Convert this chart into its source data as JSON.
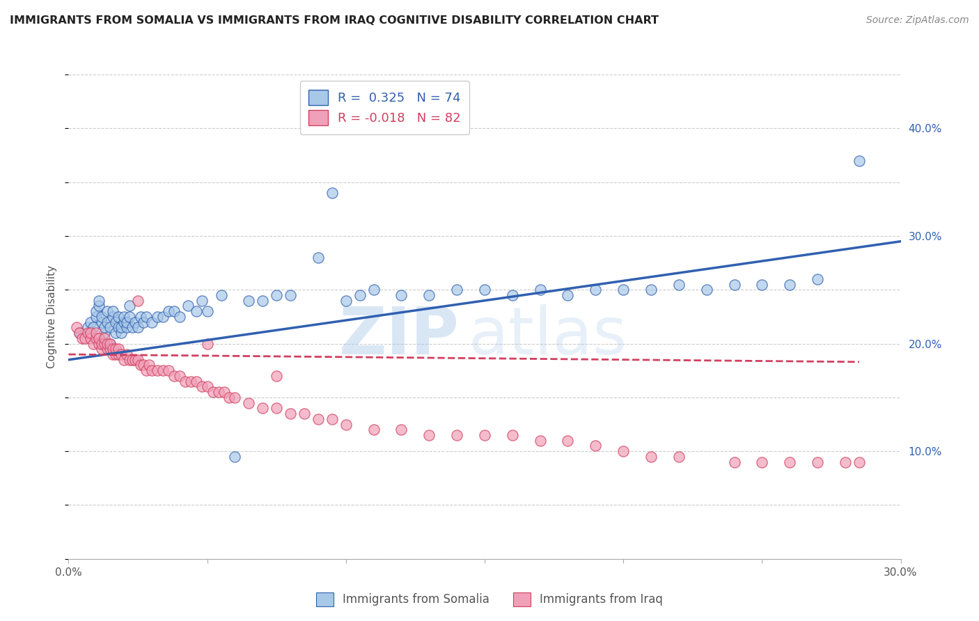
{
  "title": "IMMIGRANTS FROM SOMALIA VS IMMIGRANTS FROM IRAQ COGNITIVE DISABILITY CORRELATION CHART",
  "source": "Source: ZipAtlas.com",
  "xlabel_label": "Immigrants from Somalia",
  "ylabel_label": "Cognitive Disability",
  "xlabel2_label": "Immigrants from Iraq",
  "xlim": [
    0.0,
    0.3
  ],
  "ylim": [
    0.0,
    0.45
  ],
  "xticks": [
    0.0,
    0.05,
    0.1,
    0.15,
    0.2,
    0.25,
    0.3
  ],
  "yticks_right": [
    0.1,
    0.2,
    0.3,
    0.4
  ],
  "ytick_labels_right": [
    "10.0%",
    "20.0%",
    "30.0%",
    "40.0%"
  ],
  "xtick_labels": [
    "0.0%",
    "",
    "",
    "",
    "",
    "",
    "30.0%"
  ],
  "somalia_color": "#a8c8e8",
  "iraq_color": "#f0a0b8",
  "somalia_line_color": "#3060b0",
  "iraq_line_color": "#d04060",
  "R_somalia": 0.325,
  "N_somalia": 74,
  "R_iraq": -0.018,
  "N_iraq": 82,
  "watermark_zip": "ZIP",
  "watermark_atlas": "atlas",
  "background_color": "#ffffff",
  "grid_color": "#cccccc",
  "somalia_scatter_x": [
    0.004,
    0.007,
    0.008,
    0.009,
    0.01,
    0.01,
    0.011,
    0.011,
    0.012,
    0.012,
    0.013,
    0.013,
    0.014,
    0.014,
    0.015,
    0.015,
    0.016,
    0.016,
    0.017,
    0.017,
    0.018,
    0.018,
    0.019,
    0.019,
    0.02,
    0.02,
    0.021,
    0.021,
    0.022,
    0.022,
    0.023,
    0.024,
    0.025,
    0.026,
    0.027,
    0.028,
    0.03,
    0.032,
    0.034,
    0.036,
    0.038,
    0.04,
    0.043,
    0.046,
    0.048,
    0.05,
    0.055,
    0.06,
    0.065,
    0.07,
    0.075,
    0.08,
    0.09,
    0.095,
    0.1,
    0.105,
    0.11,
    0.12,
    0.13,
    0.14,
    0.15,
    0.16,
    0.17,
    0.18,
    0.19,
    0.2,
    0.21,
    0.22,
    0.23,
    0.24,
    0.25,
    0.26,
    0.27,
    0.285
  ],
  "somalia_scatter_y": [
    0.21,
    0.215,
    0.22,
    0.215,
    0.225,
    0.23,
    0.235,
    0.24,
    0.22,
    0.225,
    0.21,
    0.215,
    0.22,
    0.23,
    0.2,
    0.215,
    0.225,
    0.23,
    0.21,
    0.22,
    0.215,
    0.225,
    0.21,
    0.215,
    0.22,
    0.225,
    0.215,
    0.22,
    0.225,
    0.235,
    0.215,
    0.22,
    0.215,
    0.225,
    0.22,
    0.225,
    0.22,
    0.225,
    0.225,
    0.23,
    0.23,
    0.225,
    0.235,
    0.23,
    0.24,
    0.23,
    0.245,
    0.095,
    0.24,
    0.24,
    0.245,
    0.245,
    0.28,
    0.34,
    0.24,
    0.245,
    0.25,
    0.245,
    0.245,
    0.25,
    0.25,
    0.245,
    0.25,
    0.245,
    0.25,
    0.25,
    0.25,
    0.255,
    0.25,
    0.255,
    0.255,
    0.255,
    0.26,
    0.37
  ],
  "iraq_scatter_x": [
    0.003,
    0.004,
    0.005,
    0.006,
    0.007,
    0.008,
    0.008,
    0.009,
    0.01,
    0.01,
    0.011,
    0.011,
    0.012,
    0.012,
    0.013,
    0.013,
    0.014,
    0.014,
    0.015,
    0.015,
    0.016,
    0.016,
    0.017,
    0.017,
    0.018,
    0.018,
    0.019,
    0.02,
    0.021,
    0.022,
    0.023,
    0.024,
    0.025,
    0.026,
    0.027,
    0.028,
    0.029,
    0.03,
    0.032,
    0.034,
    0.036,
    0.038,
    0.04,
    0.042,
    0.044,
    0.046,
    0.048,
    0.05,
    0.052,
    0.054,
    0.056,
    0.058,
    0.06,
    0.065,
    0.07,
    0.075,
    0.08,
    0.085,
    0.09,
    0.095,
    0.1,
    0.11,
    0.12,
    0.13,
    0.14,
    0.15,
    0.16,
    0.17,
    0.18,
    0.19,
    0.2,
    0.21,
    0.22,
    0.24,
    0.25,
    0.26,
    0.27,
    0.28,
    0.285,
    0.025,
    0.05,
    0.075
  ],
  "iraq_scatter_y": [
    0.215,
    0.21,
    0.205,
    0.205,
    0.21,
    0.205,
    0.21,
    0.2,
    0.205,
    0.21,
    0.2,
    0.205,
    0.195,
    0.2,
    0.2,
    0.205,
    0.195,
    0.2,
    0.195,
    0.2,
    0.19,
    0.195,
    0.19,
    0.195,
    0.19,
    0.195,
    0.19,
    0.185,
    0.19,
    0.185,
    0.185,
    0.185,
    0.185,
    0.18,
    0.18,
    0.175,
    0.18,
    0.175,
    0.175,
    0.175,
    0.175,
    0.17,
    0.17,
    0.165,
    0.165,
    0.165,
    0.16,
    0.16,
    0.155,
    0.155,
    0.155,
    0.15,
    0.15,
    0.145,
    0.14,
    0.14,
    0.135,
    0.135,
    0.13,
    0.13,
    0.125,
    0.12,
    0.12,
    0.115,
    0.115,
    0.115,
    0.115,
    0.11,
    0.11,
    0.105,
    0.1,
    0.095,
    0.095,
    0.09,
    0.09,
    0.09,
    0.09,
    0.09,
    0.09,
    0.24,
    0.2,
    0.17
  ],
  "somalia_trendline_x": [
    0.0,
    0.3
  ],
  "somalia_trendline_y": [
    0.185,
    0.295
  ],
  "iraq_trendline_x": [
    0.0,
    0.285
  ],
  "iraq_trendline_y": [
    0.19,
    0.183
  ]
}
